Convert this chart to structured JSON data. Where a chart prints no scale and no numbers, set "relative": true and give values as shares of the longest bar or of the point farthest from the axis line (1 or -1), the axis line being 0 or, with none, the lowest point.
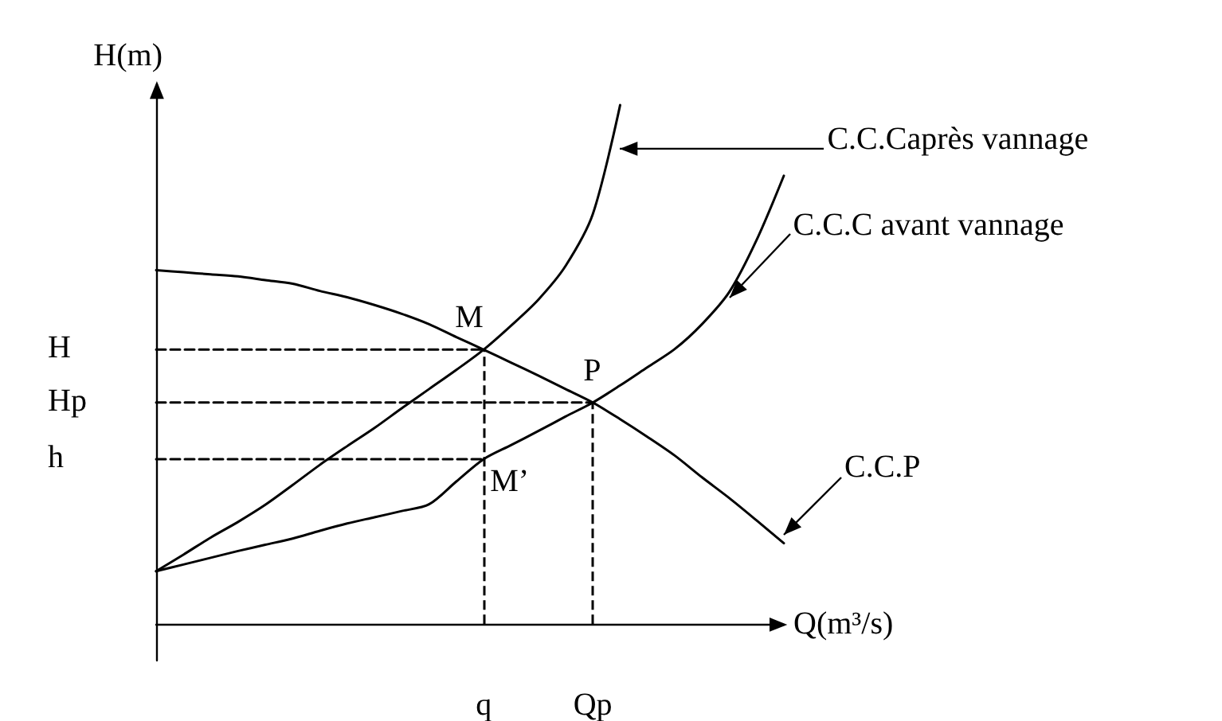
{
  "chart_data": {
    "type": "line",
    "relative": true,
    "xlabel": "Q(m³/s)",
    "ylabel": "H(m)",
    "grid": false,
    "marker": "none",
    "line_style": "solid",
    "categories": [
      null,
      null,
      null,
      null,
      null,
      null,
      null,
      null,
      null,
      null,
      null,
      null,
      "q",
      null,
      null,
      null,
      "Qp",
      null,
      null,
      null,
      null,
      null,
      null,
      null
    ],
    "series": [
      {
        "name": "C.C.P",
        "color": "#000000",
        "values": [
          0.682,
          0.678,
          0.674,
          0.67,
          0.663,
          0.656,
          0.642,
          0.63,
          0.615,
          0.598,
          0.578,
          0.553,
          0.529,
          0.504,
          0.479,
          0.453,
          0.427,
          0.395,
          0.361,
          0.325,
          0.283,
          0.243,
          0.2,
          0.156
        ]
      },
      {
        "name": "C.C.C avant vannage",
        "color": "#000000",
        "values": [
          0.102,
          0.115,
          0.128,
          0.141,
          0.153,
          0.165,
          0.18,
          0.194,
          0.206,
          0.218,
          0.231,
          0.275,
          0.318,
          0.345,
          0.372,
          0.4,
          0.427,
          0.46,
          0.495,
          0.53,
          0.578,
          0.64,
          0.74,
          0.864
        ]
      },
      {
        "name": "C.C.Caprès vannage",
        "color": "#000000",
        "values": [
          0.102,
          0.134,
          0.167,
          0.197,
          0.23,
          0.268,
          0.307,
          0.343,
          0.378,
          0.416,
          0.453,
          0.49,
          0.529,
          0.575,
          0.625,
          0.69,
          0.79,
          1.0,
          null,
          null,
          null,
          null,
          null,
          null
        ]
      },
      {
        "name": "H",
        "color": "#000000",
        "line_style": "dashed",
        "values": [
          0.529,
          0.529,
          0.529,
          0.529,
          0.529,
          0.529,
          0.529,
          0.529,
          0.529,
          0.529,
          0.529,
          0.529,
          0.529,
          null,
          null,
          null,
          null,
          null,
          null,
          null,
          null,
          null,
          null,
          null
        ]
      },
      {
        "name": "Hp",
        "color": "#000000",
        "line_style": "dashed",
        "values": [
          0.427,
          0.427,
          0.427,
          0.427,
          0.427,
          0.427,
          0.427,
          0.427,
          0.427,
          0.427,
          0.427,
          0.427,
          0.427,
          0.427,
          0.427,
          0.427,
          0.427,
          null,
          null,
          null,
          null,
          null,
          null,
          null
        ]
      },
      {
        "name": "h",
        "color": "#000000",
        "line_style": "dashed",
        "values": [
          0.318,
          0.318,
          0.318,
          0.318,
          0.318,
          0.318,
          0.318,
          0.318,
          0.318,
          0.318,
          0.318,
          0.318,
          0.318,
          null,
          null,
          null,
          null,
          null,
          null,
          null,
          null,
          null,
          null,
          null
        ]
      }
    ],
    "ref_lines": [
      {
        "axis": "x",
        "value": "q",
        "color": "#000000",
        "line_style": "dashed"
      },
      {
        "axis": "x",
        "value": "Qp",
        "color": "#000000",
        "line_style": "dashed"
      }
    ],
    "annotations": [
      {
        "text": "M",
        "x": "q",
        "y": 0.529
      },
      {
        "text": "P",
        "x": "Qp",
        "y": 0.427
      },
      {
        "text": "M’",
        "x": "q",
        "y": 0.318
      }
    ]
  }
}
